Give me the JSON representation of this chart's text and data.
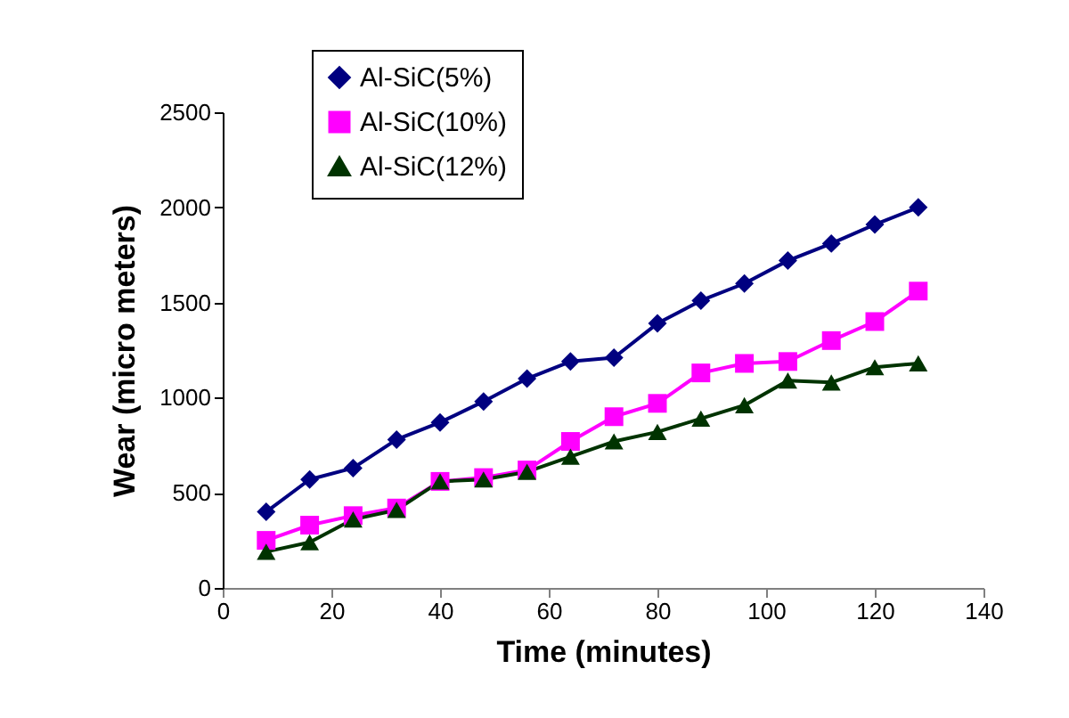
{
  "chart_data": {
    "type": "line",
    "xlabel": "Time (minutes)",
    "ylabel": "Wear (micro meters)",
    "x": [
      8,
      16,
      24,
      32,
      40,
      48,
      56,
      64,
      72,
      80,
      88,
      96,
      104,
      112,
      120,
      128
    ],
    "xlim": [
      0,
      140
    ],
    "xticks": [
      0,
      20,
      40,
      60,
      80,
      100,
      120,
      140
    ],
    "ylim": [
      0,
      2500
    ],
    "yticks": [
      0,
      500,
      1000,
      1500,
      2000,
      2500
    ],
    "grid": false,
    "legend": "top left",
    "series": [
      {
        "name": "Al-SiC(5%)",
        "color": "#000080",
        "marker": "diamond",
        "values": [
          400,
          570,
          630,
          780,
          870,
          980,
          1100,
          1190,
          1210,
          1390,
          1510,
          1600,
          1720,
          1810,
          1910,
          2000
        ]
      },
      {
        "name": "Al-SiC(10%)",
        "color": "#ff00ff",
        "marker": "square",
        "values": [
          250,
          330,
          380,
          420,
          560,
          580,
          620,
          770,
          900,
          970,
          1130,
          1180,
          1190,
          1300,
          1400,
          1560
        ]
      },
      {
        "name": "Al-SiC(12%)",
        "color": "#003300",
        "marker": "triangle",
        "values": [
          190,
          240,
          360,
          410,
          560,
          570,
          610,
          690,
          770,
          820,
          890,
          960,
          1090,
          1080,
          1160,
          1180
        ]
      }
    ]
  }
}
